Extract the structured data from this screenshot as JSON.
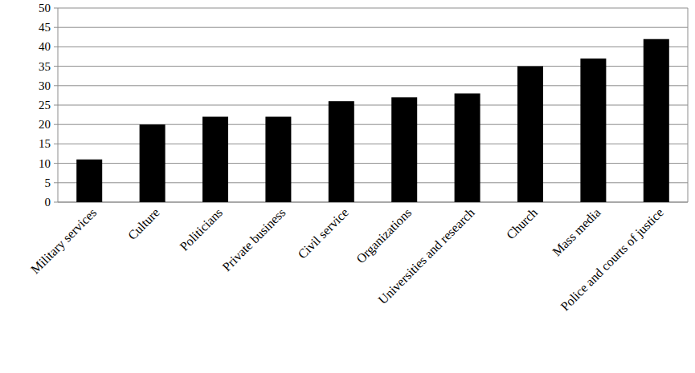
{
  "chart_data": {
    "type": "bar",
    "categories": [
      "Military services",
      "Culture",
      "Politicians",
      "Private business",
      "Civil service",
      "Organizations",
      "Universities and research",
      "Church",
      "Mass media",
      "Police and courts of justice"
    ],
    "values": [
      11,
      20,
      22,
      22,
      26,
      27,
      28,
      35,
      37,
      42
    ],
    "color": "#000000",
    "ylim": [
      0,
      50
    ],
    "yticks": [
      0,
      5,
      10,
      15,
      20,
      25,
      30,
      35,
      40,
      45,
      50
    ],
    "grid": true
  }
}
